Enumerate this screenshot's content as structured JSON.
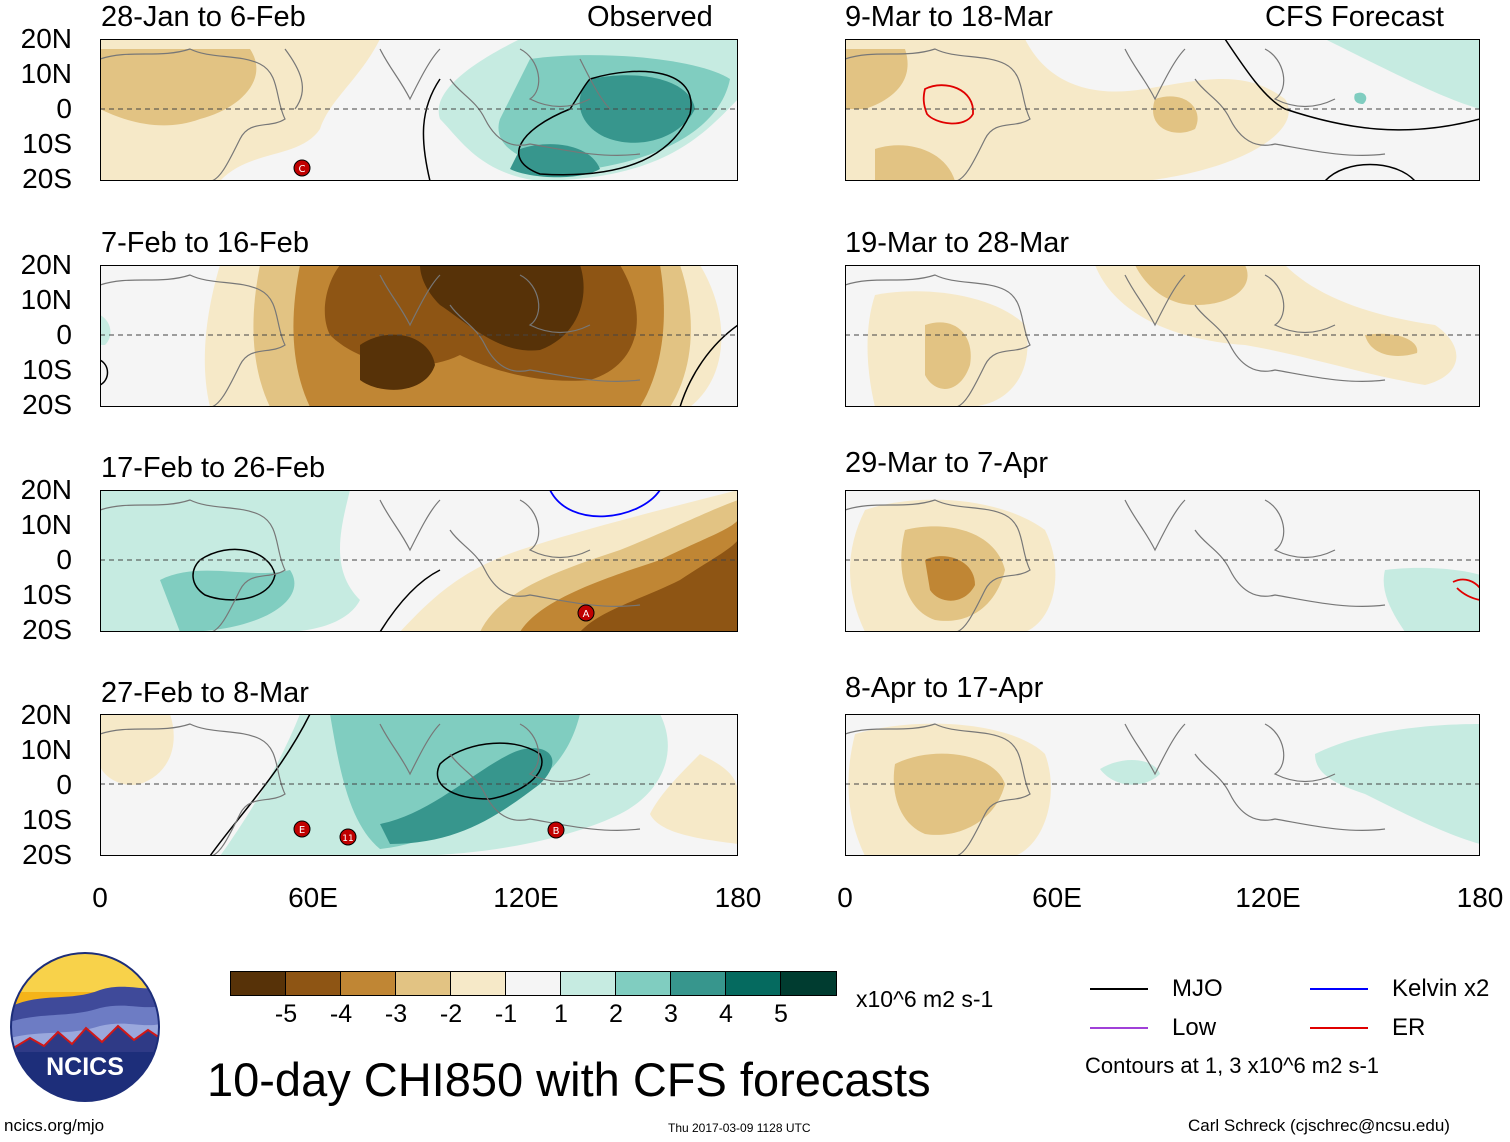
{
  "header": {
    "observed_label": "Observed",
    "forecast_label": "CFS Forecast"
  },
  "panels": [
    {
      "title": "28-Jan to 6-Feb",
      "type": "observed"
    },
    {
      "title": "7-Feb to 16-Feb",
      "type": "observed"
    },
    {
      "title": "17-Feb to 26-Feb",
      "type": "observed"
    },
    {
      "title": "27-Feb to 8-Mar",
      "type": "observed"
    },
    {
      "title": "9-Mar to 18-Mar",
      "type": "forecast"
    },
    {
      "title": "19-Mar to 28-Mar",
      "type": "forecast"
    },
    {
      "title": "29-Mar to 7-Apr",
      "type": "forecast"
    },
    {
      "title": "8-Apr to 17-Apr",
      "type": "forecast"
    }
  ],
  "axes": {
    "lat_labels": [
      "20N",
      "10N",
      "0",
      "10S",
      "20S"
    ],
    "lon_labels": [
      "0",
      "60E",
      "120E",
      "180"
    ]
  },
  "colorbar": {
    "labels": [
      "-5",
      "-4",
      "-3",
      "-2",
      "-1",
      "1",
      "2",
      "3",
      "4",
      "5"
    ],
    "colors": [
      "#573208",
      "#8e5514",
      "#c08634",
      "#e2c383",
      "#f6e9c8",
      "#f5f5f5",
      "#c6ebe1",
      "#80cdc0",
      "#37968d",
      "#056a5f",
      "#003c30"
    ],
    "units": "x10^6 m2 s-1"
  },
  "legend": [
    {
      "label": "MJO",
      "color": "#000000"
    },
    {
      "label": "Kelvin x2",
      "color": "#0000ff"
    },
    {
      "label": "Low",
      "color": "#a040d8"
    },
    {
      "label": "ER",
      "color": "#e00000"
    }
  ],
  "contour_note": "Contours at 1, 3 x10^6 m2 s-1",
  "main_title": "10-day CHI850 with CFS forecasts",
  "logo_text": "NCICS",
  "footer": {
    "website": "ncics.org/mjo",
    "timestamp": "Thu 2017-03-09 1128 UTC",
    "author": "Carl Schreck (cjschrec@ncsu.edu)"
  },
  "storms": [
    {
      "panel": 0,
      "label": "C"
    },
    {
      "panel": 2,
      "label": "A"
    },
    {
      "panel": 3,
      "label": "E"
    },
    {
      "panel": 3,
      "label": "11"
    },
    {
      "panel": 3,
      "label": "B"
    }
  ]
}
